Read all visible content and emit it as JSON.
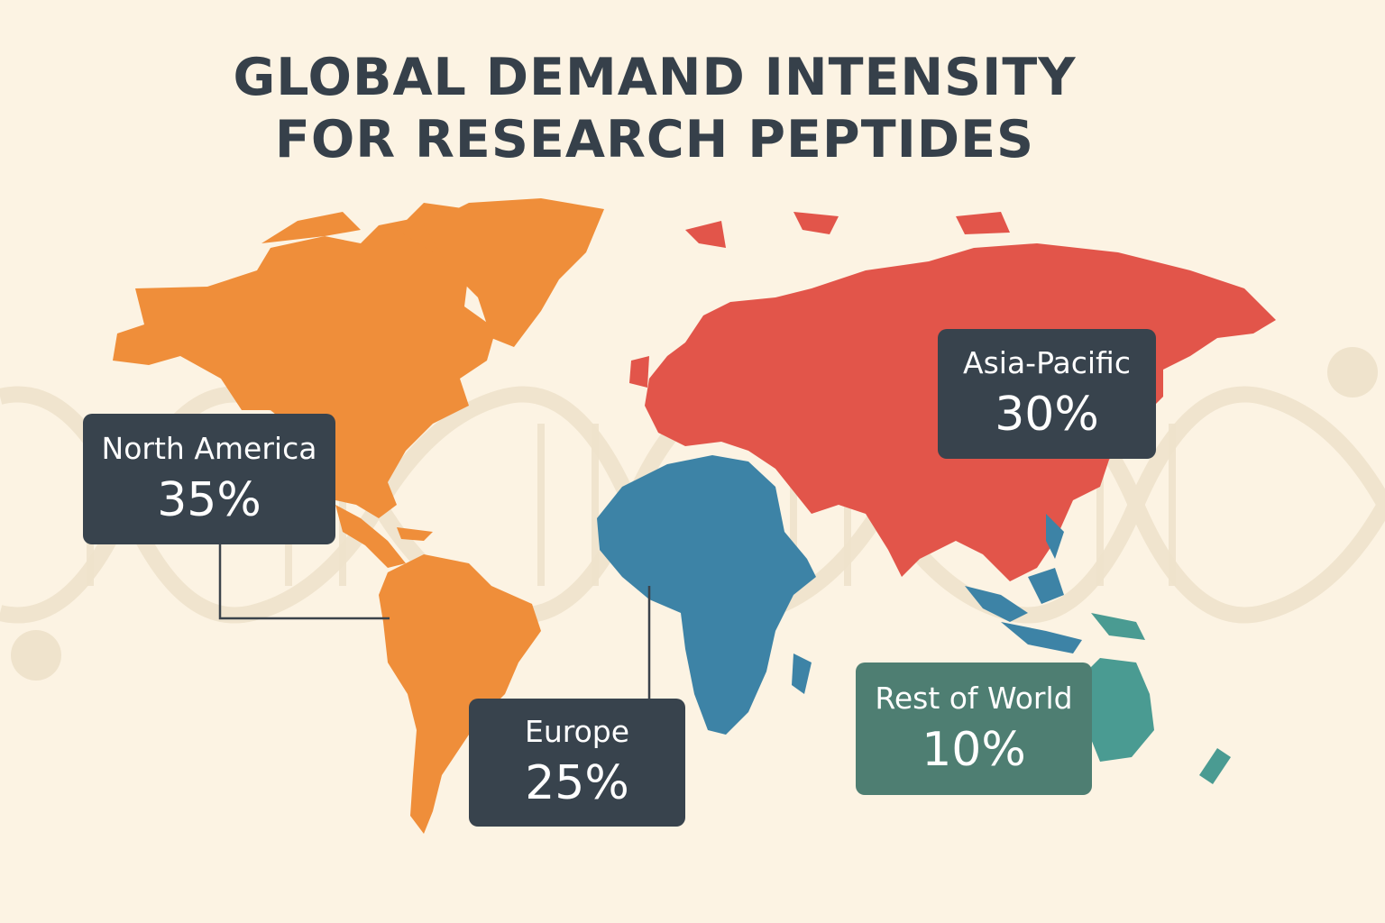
{
  "title": {
    "line1": "GLOBAL DEMAND INTENSITY",
    "line2": "FOR RESEARCH PEPTIDES"
  },
  "background": {
    "color": "#fcf3e3",
    "motif": "dna-helix"
  },
  "regions": [
    {
      "id": "north-america",
      "label": "North America",
      "value": "35%",
      "share_percent": 35,
      "color": "#ef8e3a"
    },
    {
      "id": "europe",
      "label": "Europe",
      "value": "25%",
      "share_percent": 25,
      "color": "#3d83a6"
    },
    {
      "id": "asia-pacific",
      "label": "Asia-Pacific",
      "value": "30%",
      "share_percent": 30,
      "color": "#e2554a"
    },
    {
      "id": "rest-of-world",
      "label": "Rest of World",
      "value": "10%",
      "share_percent": 10,
      "color": "#4a9b92"
    }
  ],
  "callout_colors": {
    "dark": "#38434d",
    "teal": "#4e7e72"
  }
}
